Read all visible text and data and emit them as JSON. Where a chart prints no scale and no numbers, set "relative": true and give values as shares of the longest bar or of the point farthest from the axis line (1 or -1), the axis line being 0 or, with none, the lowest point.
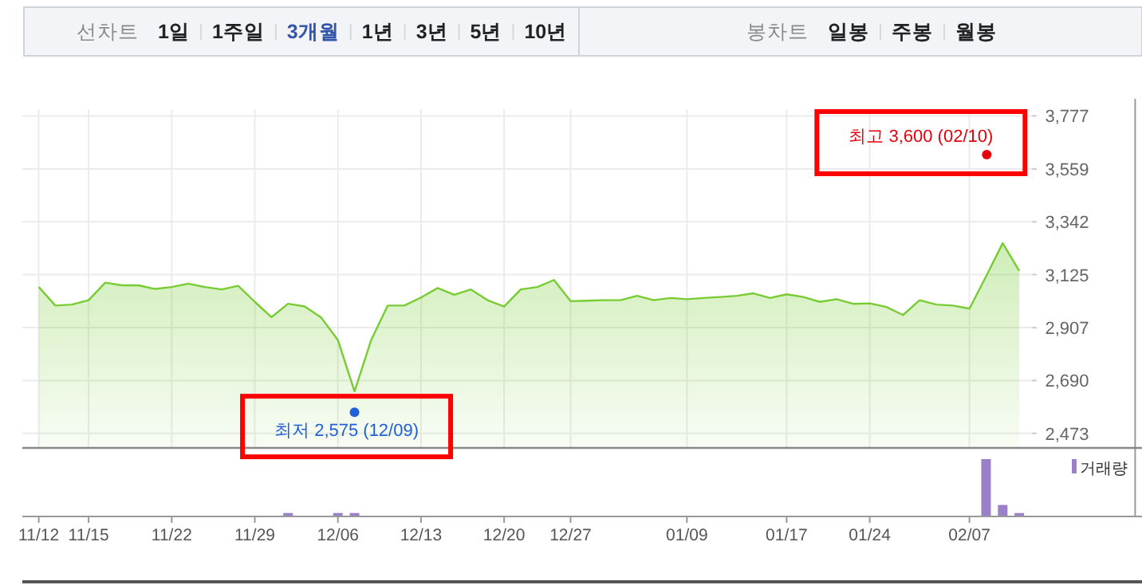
{
  "chart_data": [
    {
      "type": "other",
      "annotations": [
        "선차트",
        "1일",
        "1주일",
        "3개월",
        "1년",
        "3년",
        "5년",
        "10년",
        "봉차트",
        "일봉",
        "주봉",
        "월봉"
      ]
    },
    {
      "type": "area",
      "color": "#77cc33",
      "grid": true,
      "tick_labels": "y",
      "categories": [
        null,
        null,
        null,
        null,
        null,
        null,
        null,
        null,
        null,
        null,
        null,
        null,
        null,
        null,
        null,
        null,
        null,
        null,
        null,
        null,
        null,
        null,
        null,
        null,
        null,
        null,
        null,
        null,
        null,
        null,
        null,
        null,
        null,
        null,
        null,
        null,
        null,
        null,
        null,
        null,
        null,
        null,
        null,
        null,
        null,
        null,
        null,
        null,
        null,
        null,
        null,
        null,
        null,
        null,
        null,
        null,
        null,
        null,
        null,
        null
      ],
      "values": [
        3074,
        2998,
        3002,
        3020,
        3092,
        3081,
        3081,
        3066,
        3074,
        3088,
        3074,
        3064,
        3079,
        3013,
        2950,
        3005,
        2994,
        2948,
        2856,
        2645,
        2856,
        2998,
        2998,
        3031,
        3070,
        3042,
        3064,
        3020,
        2994,
        3064,
        3074,
        3103,
        3016,
        3018,
        3020,
        3020,
        3038,
        3020,
        3029,
        3024,
        3029,
        3033,
        3038,
        3048,
        3029,
        3044,
        3033,
        3013,
        3024,
        3005,
        3007,
        2992,
        2959,
        3020,
        3002,
        2998,
        2985,
        3118,
        3254,
        3140
      ],
      "ylim": [
        2413,
        3777
      ],
      "yticks": [
        {
          "value": 2473,
          "label": "2,473"
        },
        {
          "value": 2690,
          "label": "2,690"
        },
        {
          "value": 2907,
          "label": "2,907"
        },
        {
          "value": 3125,
          "label": "3,125"
        },
        {
          "value": 3342,
          "label": "3,342"
        },
        {
          "value": 3559,
          "label": "3,559"
        },
        {
          "value": 3777,
          "label": "3,777"
        }
      ],
      "annotations": [
        "최저 2,575 (12/09)",
        "최고 3,600 (02/10)"
      ]
    },
    {
      "type": "bar",
      "relative": true,
      "tick_labels": "x",
      "legend": "top right",
      "categories": [
        "11/12",
        null,
        null,
        "11/15",
        null,
        null,
        null,
        null,
        "11/22",
        null,
        null,
        null,
        null,
        "11/29",
        null,
        null,
        null,
        null,
        "12/06",
        null,
        null,
        null,
        null,
        "12/13",
        null,
        null,
        null,
        null,
        "12/20",
        null,
        null,
        null,
        "12/27",
        null,
        null,
        null,
        null,
        null,
        null,
        "01/09",
        null,
        null,
        null,
        null,
        null,
        "01/17",
        null,
        null,
        null,
        null,
        "01/24",
        null,
        null,
        null,
        null,
        null,
        "02/07",
        null,
        null,
        null
      ],
      "series": [
        {
          "name": "거래량",
          "color": "#9980c8",
          "values": [
            null,
            null,
            null,
            null,
            null,
            null,
            null,
            null,
            null,
            null,
            null,
            null,
            null,
            null,
            null,
            0.06,
            null,
            null,
            0.06,
            0.06,
            null,
            null,
            null,
            null,
            null,
            null,
            null,
            null,
            null,
            null,
            null,
            null,
            null,
            null,
            null,
            null,
            null,
            null,
            null,
            null,
            null,
            null,
            null,
            null,
            null,
            null,
            null,
            null,
            null,
            null,
            null,
            null,
            null,
            null,
            null,
            null,
            null,
            1,
            0.2,
            0.06
          ]
        }
      ]
    }
  ]
}
